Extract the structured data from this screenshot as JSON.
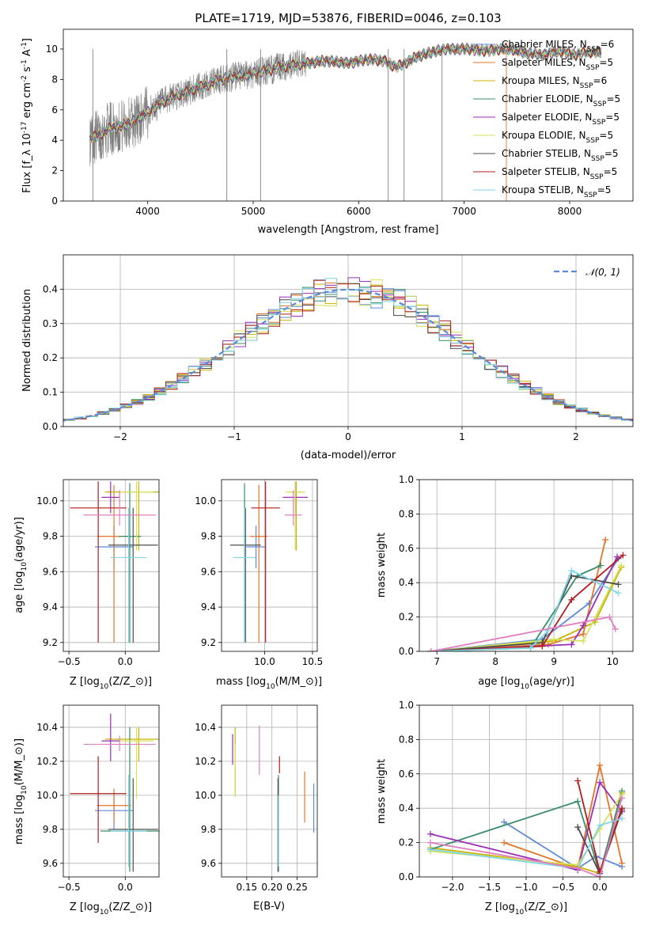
{
  "chart_data": [
    {
      "id": "spectrum",
      "type": "line",
      "title": "PLATE=1719, MJD=53876, FIBERID=0046, z=0.103",
      "xlabel": "wavelength [Angstrom, rest frame]",
      "ylabel_tex": "Flux [f_λ 10^{-17} erg cm^{-2} s^{-1} A^{-1}]",
      "xlim": [
        3200,
        8600
      ],
      "ylim": [
        0,
        11.3
      ],
      "xticks": [
        4000,
        5000,
        6000,
        7000,
        8000
      ],
      "yticks": [
        0,
        2,
        4,
        6,
        8,
        10
      ],
      "grid": false,
      "legend_position": "top-right",
      "data_color": "#808080",
      "x": [
        3450,
        3550,
        3650,
        3750,
        3850,
        3950,
        4050,
        4150,
        4250,
        4350,
        4450,
        4550,
        4650,
        4750,
        4850,
        4950,
        5050,
        5150,
        5250,
        5350,
        5450,
        5550,
        5650,
        5750,
        5850,
        5950,
        6050,
        6150,
        6250,
        6350,
        6450,
        6550,
        6650,
        6750,
        6850,
        6950,
        7050,
        7150,
        7250,
        7350,
        7450,
        7550,
        7650,
        7750,
        7850,
        7950,
        8050,
        8150,
        8250
      ],
      "flux": [
        4.1,
        4.4,
        4.8,
        4.9,
        5.2,
        5.6,
        6.1,
        6.5,
        6.9,
        7.1,
        7.4,
        7.6,
        7.9,
        8.1,
        8.2,
        8.3,
        8.5,
        8.6,
        8.8,
        8.9,
        9.0,
        9.1,
        9.2,
        9.2,
        9.1,
        9.1,
        9.3,
        9.3,
        9.2,
        8.8,
        9.1,
        9.5,
        9.7,
        9.9,
        10.0,
        10.0,
        10.0,
        9.9,
        9.9,
        10.0,
        10.0,
        9.8,
        9.7,
        9.6,
        9.8,
        9.8,
        9.6,
        9.8,
        9.8
      ],
      "series": [
        {
          "name": "Chabrier MILES, N_{SSP}=6",
          "color": "#5b8bd9"
        },
        {
          "name": "Salpeter MILES, N_{SSP}=5",
          "color": "#e3752a"
        },
        {
          "name": "Kroupa MILES, N_{SSP}=6",
          "color": "#c8b400"
        },
        {
          "name": "Chabrier ELODIE, N_{SSP}=5",
          "color": "#3a8c6b"
        },
        {
          "name": "Salpeter ELODIE, N_{SSP}=5",
          "color": "#9b2fb5"
        },
        {
          "name": "Kroupa ELODIE, N_{SSP}=5",
          "color": "#d7e05a"
        },
        {
          "name": "Chabrier STELIB, N_{SSP}=5",
          "color": "#4d4d4d"
        },
        {
          "name": "Salpeter STELIB, N_{SSP}=5",
          "color": "#b21d1d"
        },
        {
          "name": "Kroupa STELIB, N_{SSP}=5",
          "color": "#7fd6e6"
        }
      ]
    },
    {
      "id": "residuals",
      "type": "line",
      "xlabel": "(data-model)/error",
      "ylabel": "Normed distribution",
      "xlim": [
        -2.5,
        2.5
      ],
      "ylim": [
        0,
        0.5
      ],
      "xticks": [
        -2,
        -1,
        0,
        1,
        2
      ],
      "yticks": [
        0.0,
        0.1,
        0.2,
        0.3,
        0.4
      ],
      "grid": true,
      "legend_position": "top-right",
      "legend": "𝒩(0, 1)",
      "bin_width": 0.1
    },
    {
      "id": "age_vs_Z",
      "type": "scatter",
      "xlabel_tex": "Z [log_{10}(Z/Z_⊙)]",
      "ylabel_tex": "age  [log_{10}(age/yr)]",
      "xlim": [
        -0.55,
        0.3
      ],
      "ylim": [
        9.15,
        10.12
      ],
      "xticks": [
        -0.5,
        0.0,
        0.5
      ],
      "yticks": [
        9.2,
        9.4,
        9.6,
        9.8,
        10.0
      ],
      "grid": true,
      "points": [
        {
          "color": "#5b8bd9",
          "x": -0.1,
          "y": 9.74,
          "xerr": 0.17,
          "ylo": 9.62,
          "yhi": 9.86
        },
        {
          "color": "#e3752a",
          "x": -0.1,
          "y": 9.8,
          "xerr": 0.15,
          "ylo": 9.2,
          "yhi": 10.09
        },
        {
          "color": "#c8b400",
          "x": 0.12,
          "y": 10.05,
          "xerr": 0.3,
          "ylo": 9.72,
          "yhi": 10.11
        },
        {
          "color": "#3a8c6b",
          "x": 0.04,
          "y": 9.8,
          "xerr": 0.1,
          "ylo": 9.2,
          "yhi": 10.1
        },
        {
          "color": "#9b2fb5",
          "x": -0.13,
          "y": 10.02,
          "xerr": 0.08,
          "ylo": 9.93,
          "yhi": 10.11
        },
        {
          "color": "#d7e05a",
          "x": 0.1,
          "y": 10.05,
          "xerr": 0.15,
          "ylo": 9.72,
          "yhi": 10.11
        },
        {
          "color": "#4d4d4d",
          "x": 0.07,
          "y": 9.75,
          "xerr": 0.22,
          "ylo": 9.2,
          "yhi": 9.96
        },
        {
          "color": "#b21d1d",
          "x": -0.24,
          "y": 9.96,
          "xerr": 0.25,
          "ylo": 9.2,
          "yhi": 10.11
        },
        {
          "color": "#7fd6e6",
          "x": 0.03,
          "y": 9.68,
          "xerr": 0.16,
          "ylo": 9.2,
          "yhi": 9.96
        },
        {
          "color": "#e07fc2",
          "x": -0.05,
          "y": 9.92,
          "xerr": 0.32,
          "ylo": 9.86,
          "yhi": 10.06
        }
      ]
    },
    {
      "id": "age_vs_mass",
      "type": "scatter",
      "xlabel_tex": "mass [log_{10}(M/M_⊙)]",
      "xlim": [
        9.55,
        10.55
      ],
      "ylim": [
        9.15,
        10.12
      ],
      "xticks": [
        10.0,
        10.5
      ],
      "yticks": [
        9.2,
        9.4,
        9.6,
        9.8,
        10.0
      ],
      "grid": true,
      "points": [
        {
          "color": "#5b8bd9",
          "x": 9.91,
          "y": 9.74,
          "xerr": 0.1,
          "ylo": 9.62,
          "yhi": 9.86
        },
        {
          "color": "#e3752a",
          "x": 9.94,
          "y": 9.8,
          "xerr": 0.09,
          "ylo": 9.2,
          "yhi": 10.09
        },
        {
          "color": "#c8b400",
          "x": 10.33,
          "y": 10.05,
          "xerr": 0.09,
          "ylo": 9.72,
          "yhi": 10.11
        },
        {
          "color": "#3a8c6b",
          "x": 9.79,
          "y": 9.8,
          "xerr": 0.01,
          "ylo": 9.2,
          "yhi": 10.1
        },
        {
          "color": "#9b2fb5",
          "x": 10.32,
          "y": 10.02,
          "xerr": 0.13,
          "ylo": 9.93,
          "yhi": 10.11
        },
        {
          "color": "#d7e05a",
          "x": 10.32,
          "y": 10.05,
          "xerr": 0.1,
          "ylo": 9.72,
          "yhi": 10.11
        },
        {
          "color": "#4d4d4d",
          "x": 9.8,
          "y": 9.75,
          "xerr": 0.16,
          "ylo": 9.2,
          "yhi": 9.96
        },
        {
          "color": "#b21d1d",
          "x": 10.01,
          "y": 9.96,
          "xerr": 0.15,
          "ylo": 9.2,
          "yhi": 10.11
        },
        {
          "color": "#7fd6e6",
          "x": 9.79,
          "y": 9.68,
          "xerr": 0.12,
          "ylo": 9.2,
          "yhi": 9.96
        },
        {
          "color": "#e07fc2",
          "x": 10.3,
          "y": 9.92,
          "xerr": 0.09,
          "ylo": 9.86,
          "yhi": 10.06
        }
      ]
    },
    {
      "id": "weight_vs_age",
      "type": "line",
      "xlabel_tex": "age  [log_{10}(age/yr)]",
      "ylabel": "mass weight",
      "xlim": [
        6.7,
        10.35
      ],
      "ylim": [
        0.0,
        1.0
      ],
      "xticks": [
        7,
        8,
        9,
        10
      ],
      "yticks": [
        0.0,
        0.2,
        0.4,
        0.6,
        0.8,
        1.0
      ],
      "grid": true,
      "series": [
        {
          "color": "#5b8bd9",
          "x": [
            6.9,
            8.8,
            9.6,
            10.1
          ],
          "y": [
            0.0,
            0.07,
            0.28,
            0.54
          ]
        },
        {
          "color": "#e3752a",
          "x": [
            6.9,
            8.9,
            9.5,
            9.88
          ],
          "y": [
            0.0,
            0.04,
            0.1,
            0.65
          ]
        },
        {
          "color": "#c8b400",
          "x": [
            6.9,
            9.0,
            9.7,
            10.15
          ],
          "y": [
            0.0,
            0.06,
            0.17,
            0.49
          ]
        },
        {
          "color": "#3a8c6b",
          "x": [
            6.9,
            8.6,
            9.4,
            9.8
          ],
          "y": [
            0.0,
            0.02,
            0.44,
            0.5
          ]
        },
        {
          "color": "#9b2fb5",
          "x": [
            6.9,
            9.3,
            9.5,
            10.08
          ],
          "y": [
            0.0,
            0.04,
            0.15,
            0.55
          ]
        },
        {
          "color": "#d7e05a",
          "x": [
            6.9,
            9.0,
            9.5,
            10.15
          ],
          "y": [
            0.0,
            0.07,
            0.06,
            0.5
          ]
        },
        {
          "color": "#4d4d4d",
          "x": [
            6.9,
            8.8,
            9.3,
            10.1
          ],
          "y": [
            0.0,
            0.05,
            0.44,
            0.39
          ]
        },
        {
          "color": "#b21d1d",
          "x": [
            6.9,
            8.8,
            9.3,
            10.18
          ],
          "y": [
            0.0,
            0.03,
            0.3,
            0.56
          ]
        },
        {
          "color": "#7fd6e6",
          "x": [
            6.9,
            8.6,
            8.9,
            9.3,
            10.1
          ],
          "y": [
            0.0,
            0.02,
            0.12,
            0.47,
            0.34
          ]
        },
        {
          "color": "#e07fc2",
          "x": [
            6.9,
            9.95,
            10.05
          ],
          "y": [
            0.0,
            0.2,
            0.13
          ]
        }
      ]
    },
    {
      "id": "mass_vs_Z",
      "type": "scatter",
      "xlabel_tex": "Z [log_{10}(Z/Z_⊙)]",
      "ylabel_tex": "mass [log_{10}(M/M_⊙)]",
      "xlim": [
        -0.55,
        0.3
      ],
      "ylim": [
        9.52,
        10.53
      ],
      "xticks": [
        -0.5,
        0.0,
        0.5
      ],
      "yticks": [
        9.6,
        9.8,
        10.0,
        10.2,
        10.4
      ],
      "grid": true,
      "points": [
        {
          "color": "#5b8bd9",
          "x": -0.1,
          "y": 9.91,
          "xerr": 0.17,
          "ylo": 9.8,
          "yhi": 10.02
        },
        {
          "color": "#e3752a",
          "x": -0.1,
          "y": 9.94,
          "xerr": 0.15,
          "ylo": 9.84,
          "yhi": 10.04
        },
        {
          "color": "#c8b400",
          "x": 0.12,
          "y": 10.33,
          "xerr": 0.3,
          "ylo": 10.2,
          "yhi": 10.4
        },
        {
          "color": "#3a8c6b",
          "x": 0.04,
          "y": 9.79,
          "xerr": 0.26,
          "ylo": 9.55,
          "yhi": 10.4
        },
        {
          "color": "#9b2fb5",
          "x": -0.13,
          "y": 10.32,
          "xerr": 0.08,
          "ylo": 10.2,
          "yhi": 10.48
        },
        {
          "color": "#d7e05a",
          "x": 0.1,
          "y": 10.32,
          "xerr": 0.15,
          "ylo": 9.98,
          "yhi": 10.4
        },
        {
          "color": "#4d4d4d",
          "x": 0.07,
          "y": 9.8,
          "xerr": 0.22,
          "ylo": 9.55,
          "yhi": 10.1
        },
        {
          "color": "#b21d1d",
          "x": -0.24,
          "y": 10.01,
          "xerr": 0.25,
          "ylo": 9.72,
          "yhi": 10.23
        },
        {
          "color": "#7fd6e6",
          "x": 0.03,
          "y": 9.79,
          "xerr": 0.16,
          "ylo": 9.58,
          "yhi": 10.12
        },
        {
          "color": "#e07fc2",
          "x": -0.05,
          "y": 10.3,
          "xerr": 0.32,
          "ylo": 10.26,
          "yhi": 10.35
        }
      ]
    },
    {
      "id": "mass_vs_ebv",
      "type": "scatter",
      "xlabel": "E(B-V)",
      "xlim": [
        0.1,
        0.29
      ],
      "ylim": [
        9.52,
        10.53
      ],
      "xticks": [
        0.15,
        0.2,
        0.25
      ],
      "yticks": [
        9.6,
        9.8,
        10.0,
        10.2,
        10.4
      ],
      "grid": true,
      "points": [
        {
          "color": "#5b8bd9",
          "x": 0.283,
          "ylo": 9.78,
          "yhi": 10.07
        },
        {
          "color": "#e3752a",
          "x": 0.265,
          "ylo": 9.84,
          "yhi": 10.14
        },
        {
          "color": "#c8b400",
          "x": 0.127,
          "ylo": 10.0,
          "yhi": 10.4
        },
        {
          "color": "#3a8c6b",
          "x": 0.213,
          "ylo": 9.55,
          "yhi": 10.12
        },
        {
          "color": "#9b2fb5",
          "x": 0.122,
          "ylo": 10.18,
          "yhi": 10.36
        },
        {
          "color": "#d7e05a",
          "x": 0.127,
          "ylo": 9.99,
          "yhi": 10.3
        },
        {
          "color": "#4d4d4d",
          "x": 0.212,
          "ylo": 9.55,
          "yhi": 10.1
        },
        {
          "color": "#b21d1d",
          "x": 0.215,
          "ylo": 10.13,
          "yhi": 10.23
        },
        {
          "color": "#7fd6e6",
          "x": 0.213,
          "ylo": 9.58,
          "yhi": 10.0
        },
        {
          "color": "#e07fc2",
          "x": 0.175,
          "ylo": 10.12,
          "yhi": 10.41
        }
      ]
    },
    {
      "id": "weight_vs_Z",
      "type": "line",
      "xlabel_tex": "Z [log_{10}(Z/Z_⊙)]",
      "ylabel": "mass weight",
      "xlim": [
        -2.45,
        0.45
      ],
      "ylim": [
        0.0,
        1.0
      ],
      "xticks": [
        -2.0,
        -1.5,
        -1.0,
        -0.5,
        0.0
      ],
      "yticks": [
        0.0,
        0.2,
        0.4,
        0.6,
        0.8,
        1.0
      ],
      "grid": true,
      "series": [
        {
          "color": "#5b8bd9",
          "x": [
            -1.3,
            -0.3,
            -0.05,
            0.3
          ],
          "y": [
            0.32,
            0.05,
            0.12,
            0.06
          ]
        },
        {
          "color": "#e3752a",
          "x": [
            -1.3,
            -0.3,
            0.0,
            0.3
          ],
          "y": [
            0.2,
            0.05,
            0.65,
            0.08
          ]
        },
        {
          "color": "#c8b400",
          "x": [
            -2.3,
            -0.3,
            0.0,
            0.3
          ],
          "y": [
            0.17,
            0.06,
            0.02,
            0.49
          ]
        },
        {
          "color": "#3a8c6b",
          "x": [
            -2.3,
            -0.3,
            0.0,
            0.3
          ],
          "y": [
            0.16,
            0.44,
            0.02,
            0.5
          ]
        },
        {
          "color": "#9b2fb5",
          "x": [
            -2.3,
            -0.3,
            0.0,
            0.3
          ],
          "y": [
            0.25,
            0.04,
            0.55,
            0.38
          ]
        },
        {
          "color": "#d7e05a",
          "x": [
            -2.3,
            -0.3,
            0.0,
            0.3
          ],
          "y": [
            0.15,
            0.07,
            0.28,
            0.48
          ]
        },
        {
          "color": "#4d4d4d",
          "x": [
            -0.3,
            0.0,
            0.3
          ],
          "y": [
            0.29,
            0.02,
            0.39
          ]
        },
        {
          "color": "#b21d1d",
          "x": [
            -0.3,
            0.0,
            0.3
          ],
          "y": [
            0.56,
            0.03,
            0.4
          ]
        },
        {
          "color": "#7fd6e6",
          "x": [
            -2.3,
            -0.3,
            0.0,
            0.3
          ],
          "y": [
            0.16,
            0.05,
            0.3,
            0.34
          ]
        },
        {
          "color": "#e07fc2",
          "x": [
            -2.3,
            -0.3,
            0.0,
            0.3
          ],
          "y": [
            0.2,
            0.05,
            0.0,
            0.46
          ]
        }
      ]
    }
  ]
}
